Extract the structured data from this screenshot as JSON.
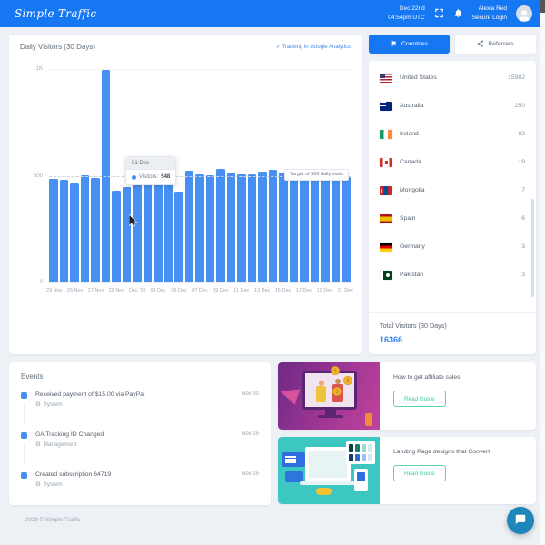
{
  "header": {
    "logo": "Simple Traffic",
    "date_line1": "Dec 22nd",
    "date_line2": "04:54pm UTC",
    "user_name": "Alexia Red",
    "user_sub": "Secure Login"
  },
  "chart_card": {
    "title": "Daily Visitors (30 Days)",
    "tracking_link": "✓ Tracking in Google Analytics",
    "target_label": "Target of 500 daily visits",
    "tooltip": {
      "title": "01 Dec",
      "series": "Visitors:",
      "value": "548"
    }
  },
  "chart_data": {
    "type": "bar",
    "title": "Daily Visitors (30 Days)",
    "x": [
      "23 Nov",
      "24 Nov",
      "25 Nov",
      "26 Nov",
      "27 Nov",
      "28 Nov",
      "29 Nov",
      "30 Nov",
      "01 Dec",
      "02 Dec",
      "03 Dec",
      "04 Dec",
      "05 Dec",
      "06 Dec",
      "07 Dec",
      "08 Dec",
      "09 Dec",
      "10 Dec",
      "11 Dec",
      "12 Dec",
      "13 Dec",
      "14 Dec",
      "15 Dec",
      "16 Dec",
      "17 Dec",
      "18 Dec",
      "19 Dec",
      "20 Dec",
      "21 Dec"
    ],
    "values": [
      487,
      480,
      462,
      501,
      490,
      996,
      430,
      445,
      548,
      515,
      532,
      473,
      424,
      522,
      508,
      501,
      532,
      513,
      508,
      508,
      520,
      527,
      515,
      518,
      513,
      518,
      501,
      504,
      494
    ],
    "x_tick_labels": [
      "23 Nov",
      "25 Nov",
      "27 Nov",
      "29 Nov",
      "Dec '20",
      "03 Dec",
      "05 Dec",
      "07 Dec",
      "09 Dec",
      "11 Dec",
      "13 Dec",
      "15 Dec",
      "17 Dec",
      "19 Dec",
      "21 Dec"
    ],
    "y_ticks": [
      "1K",
      "500",
      "0"
    ],
    "ylim": [
      0,
      1000
    ],
    "grid": true,
    "bar_color": "#4790f2",
    "annotation": {
      "y": 500,
      "label": "Target of 500 daily visits"
    }
  },
  "right_panel": {
    "tabs": [
      {
        "label": "Countries"
      },
      {
        "label": "Referrers"
      }
    ],
    "countries": [
      {
        "name": "United States",
        "value": "15982",
        "flag": "us"
      },
      {
        "name": "Australia",
        "value": "250",
        "flag": "au"
      },
      {
        "name": "Ireland",
        "value": "82",
        "flag": "ie"
      },
      {
        "name": "Canada",
        "value": "19",
        "flag": "ca"
      },
      {
        "name": "Mongolia",
        "value": "7",
        "flag": "mn"
      },
      {
        "name": "Spain",
        "value": "6",
        "flag": "es"
      },
      {
        "name": "Germany",
        "value": "3",
        "flag": "de"
      },
      {
        "name": "Pakistan",
        "value": "3",
        "flag": "pk"
      }
    ],
    "total_title": "Total Visitors (30 Days)",
    "total_value": "16366"
  },
  "events": {
    "title": "Events",
    "items": [
      {
        "title": "Received payment of $15.00 via PayPal",
        "category": "System",
        "category_icon": "⚙",
        "date": "Nov 30"
      },
      {
        "title": "GA Tracking ID Changed",
        "category": "Management",
        "category_icon": "⚙",
        "date": "Nov 25"
      },
      {
        "title": "Created subscription 64719",
        "category": "System",
        "category_icon": "⚙",
        "date": "Nov 25"
      }
    ]
  },
  "promos": [
    {
      "title": "How to get affiliate sales",
      "cta": "Read Guide"
    },
    {
      "title": "Landing Page designs that Convert",
      "cta": "Read Guide"
    }
  ],
  "footer": {
    "copyright": "2020 © Simple Traffic"
  },
  "colors": {
    "header_blue": "#1677f2",
    "bar_blue": "#4790f2",
    "total_blue": "#2f80ed",
    "cta_teal": "#45c9a8",
    "chat_teal": "#1e86b8"
  }
}
